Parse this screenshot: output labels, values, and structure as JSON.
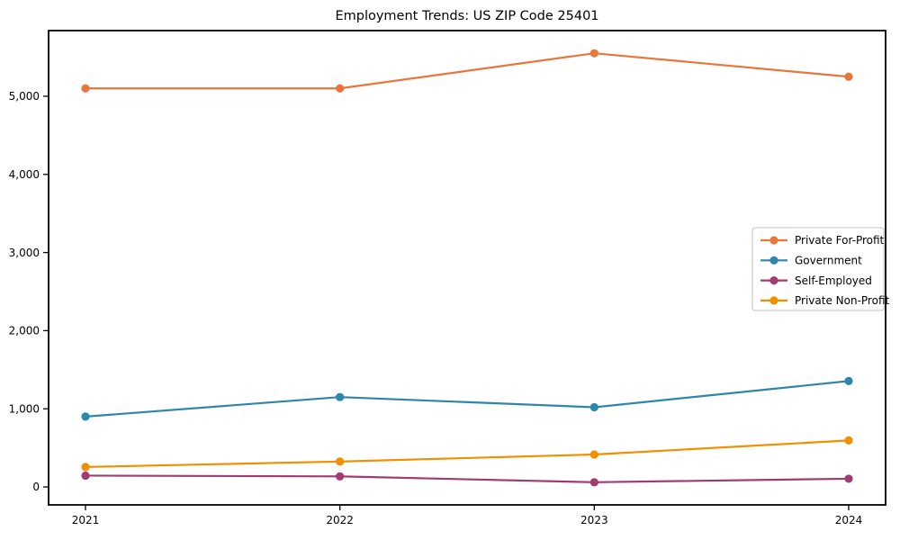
{
  "chart_data": {
    "type": "line",
    "title": "Employment Trends: US ZIP Code 25401",
    "xlabel": "",
    "ylabel": "",
    "x": [
      2021,
      2022,
      2023,
      2024
    ],
    "x_tick_labels": [
      "2021",
      "2022",
      "2023",
      "2024"
    ],
    "y_ticks": [
      0,
      1000,
      2000,
      3000,
      4000,
      5000
    ],
    "y_tick_labels": [
      "0",
      "1,000",
      "2,000",
      "3,000",
      "4,000",
      "5,000"
    ],
    "ylim": [
      -230,
      5840
    ],
    "grid": false,
    "legend_position": "center right",
    "marker": "o",
    "series": [
      {
        "name": "Private For-Profit",
        "color": "#E8763B",
        "values": [
          5100,
          5100,
          5550,
          5250
        ]
      },
      {
        "name": "Government",
        "color": "#2E86AB",
        "values": [
          900,
          1150,
          1020,
          1355
        ]
      },
      {
        "name": "Self-Employed",
        "color": "#A23B72",
        "values": [
          145,
          135,
          60,
          105
        ]
      },
      {
        "name": "Private Non-Profit",
        "color": "#F18F01",
        "values": [
          255,
          325,
          415,
          595
        ]
      }
    ],
    "colors": {
      "axis": "#000000",
      "tick_label": "#000000",
      "legend_border": "#c0c0c0",
      "background": "#ffffff"
    }
  }
}
